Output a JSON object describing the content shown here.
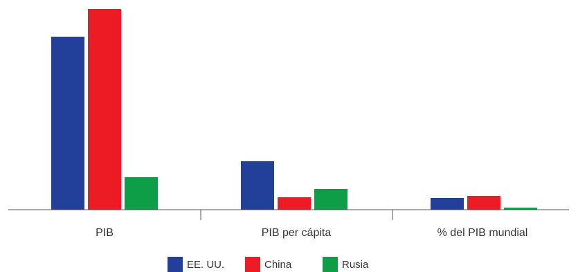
{
  "chart_data": {
    "type": "bar",
    "categories": [
      "PIB",
      "PIB per cápita",
      "% del PIB mundial"
    ],
    "series": [
      {
        "name": "EE. UU.",
        "color": "#22409a",
        "values": [
          250,
          70,
          17
        ]
      },
      {
        "name": "China",
        "color": "#ed1c24",
        "values": [
          290,
          18,
          20
        ]
      },
      {
        "name": "Rusia",
        "color": "#0e9e48",
        "values": [
          47,
          30,
          3
        ]
      }
    ],
    "ylim": [
      0,
      290
    ],
    "title": "",
    "xlabel": "",
    "ylabel": "",
    "grid": false,
    "legend_position": "bottom"
  }
}
